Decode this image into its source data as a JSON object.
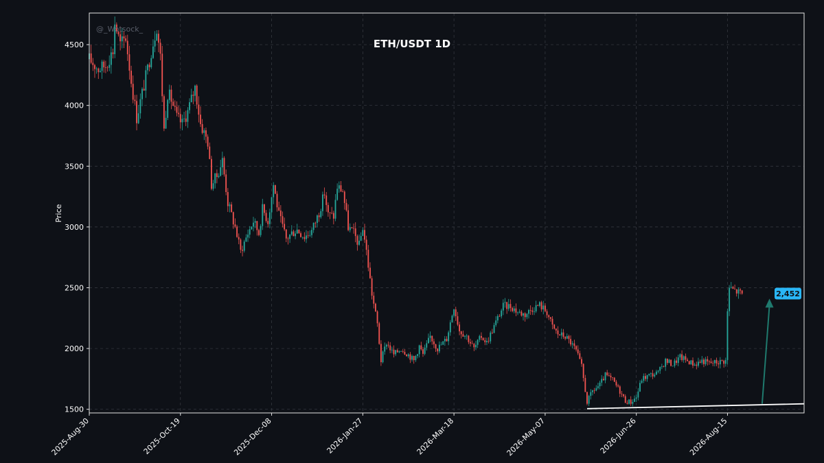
{
  "colors": {
    "background": "#0e1117",
    "axes_frame": "#e6e6e6",
    "grid": "#3a3d45",
    "text": "#ffffff",
    "up": "#26a69a",
    "down": "#ef5350",
    "price_badge": "#29b6f6",
    "arrow": "#1f7a6e",
    "trendline": "#ffffff",
    "watermark": "#5a5f6a"
  },
  "chart_data": {
    "type": "candlestick",
    "title": "ETH/USDT  1D",
    "ylabel": "Price",
    "watermark": "@_Wotsock_",
    "x_range": [
      "2025-08-30",
      "2026-09-26"
    ],
    "ylim": [
      1470,
      4760
    ],
    "y_ticks": [
      1500,
      2000,
      2500,
      3000,
      3500,
      4000,
      4500
    ],
    "x_tick_labels": [
      "2025-Aug-30",
      "2025-Oct-19",
      "2025-Dec-08",
      "2026-Jan-27",
      "2026-Mar-18",
      "2026-May-07",
      "2026-Jun-26",
      "2026-Aug-15"
    ],
    "x_tick_dates": [
      "2025-08-30",
      "2025-10-19",
      "2025-12-08",
      "2026-01-27",
      "2026-03-18",
      "2026-05-07",
      "2026-06-26",
      "2026-08-15"
    ],
    "grid": true,
    "close_path": [
      [
        "2025-08-30",
        4380
      ],
      [
        "2025-09-04",
        4300
      ],
      [
        "2025-09-08",
        4330
      ],
      [
        "2025-09-12",
        4450
      ],
      [
        "2025-09-13",
        4680
      ],
      [
        "2025-09-16",
        4500
      ],
      [
        "2025-09-19",
        4560
      ],
      [
        "2025-09-22",
        4200
      ],
      [
        "2025-09-25",
        3900
      ],
      [
        "2025-09-28",
        4100
      ],
      [
        "2025-10-01",
        4300
      ],
      [
        "2025-10-03",
        4450
      ],
      [
        "2025-10-06",
        4650
      ],
      [
        "2025-10-08",
        4400
      ],
      [
        "2025-10-10",
        3800
      ],
      [
        "2025-10-12",
        4100
      ],
      [
        "2025-10-14",
        4050
      ],
      [
        "2025-10-17",
        3900
      ],
      [
        "2025-10-20",
        3850
      ],
      [
        "2025-10-23",
        3950
      ],
      [
        "2025-10-27",
        4150
      ],
      [
        "2025-10-30",
        3850
      ],
      [
        "2025-11-03",
        3700
      ],
      [
        "2025-11-05",
        3350
      ],
      [
        "2025-11-08",
        3420
      ],
      [
        "2025-11-11",
        3550
      ],
      [
        "2025-11-14",
        3200
      ],
      [
        "2025-11-18",
        3000
      ],
      [
        "2025-11-21",
        2800
      ],
      [
        "2025-11-25",
        2950
      ],
      [
        "2025-11-28",
        3050
      ],
      [
        "2025-12-01",
        2950
      ],
      [
        "2025-12-03",
        3150
      ],
      [
        "2025-12-06",
        3050
      ],
      [
        "2025-12-09",
        3350
      ],
      [
        "2025-12-12",
        3100
      ],
      [
        "2025-12-16",
        2900
      ],
      [
        "2025-12-19",
        2950
      ],
      [
        "2025-12-22",
        2980
      ],
      [
        "2025-12-26",
        2920
      ],
      [
        "2025-12-30",
        2970
      ],
      [
        "2026-01-03",
        3120
      ],
      [
        "2026-01-06",
        3280
      ],
      [
        "2026-01-08",
        3100
      ],
      [
        "2026-01-11",
        3090
      ],
      [
        "2026-01-13",
        3330
      ],
      [
        "2026-01-16",
        3300
      ],
      [
        "2026-01-19",
        3000
      ],
      [
        "2026-01-22",
        2950
      ],
      [
        "2026-01-25",
        2850
      ],
      [
        "2026-01-27",
        3000
      ],
      [
        "2026-01-29",
        2800
      ],
      [
        "2026-02-01",
        2450
      ],
      [
        "2026-02-04",
        2200
      ],
      [
        "2026-02-06",
        1900
      ],
      [
        "2026-02-09",
        2050
      ],
      [
        "2026-02-13",
        1950
      ],
      [
        "2026-02-17",
        2000
      ],
      [
        "2026-02-21",
        1950
      ],
      [
        "2026-02-24",
        1900
      ],
      [
        "2026-02-27",
        2020
      ],
      [
        "2026-03-01",
        1950
      ],
      [
        "2026-03-05",
        2100
      ],
      [
        "2026-03-09",
        2000
      ],
      [
        "2026-03-14",
        2080
      ],
      [
        "2026-03-18",
        2350
      ],
      [
        "2026-03-21",
        2150
      ],
      [
        "2026-03-25",
        2100
      ],
      [
        "2026-03-29",
        2000
      ],
      [
        "2026-04-02",
        2100
      ],
      [
        "2026-04-05",
        2050
      ],
      [
        "2026-04-08",
        2150
      ],
      [
        "2026-04-11",
        2250
      ],
      [
        "2026-04-14",
        2350
      ],
      [
        "2026-04-18",
        2350
      ],
      [
        "2026-04-22",
        2300
      ],
      [
        "2026-04-26",
        2280
      ],
      [
        "2026-04-30",
        2330
      ],
      [
        "2026-05-04",
        2360
      ],
      [
        "2026-05-08",
        2300
      ],
      [
        "2026-05-11",
        2180
      ],
      [
        "2026-05-14",
        2120
      ],
      [
        "2026-05-18",
        2100
      ],
      [
        "2026-05-21",
        2050
      ],
      [
        "2026-05-24",
        1980
      ],
      [
        "2026-05-27",
        1850
      ],
      [
        "2026-05-30",
        1560
      ],
      [
        "2026-06-02",
        1650
      ],
      [
        "2026-06-06",
        1700
      ],
      [
        "2026-06-09",
        1780
      ],
      [
        "2026-06-13",
        1740
      ],
      [
        "2026-06-17",
        1650
      ],
      [
        "2026-06-20",
        1570
      ],
      [
        "2026-06-23",
        1560
      ],
      [
        "2026-06-26",
        1600
      ],
      [
        "2026-06-29",
        1750
      ],
      [
        "2026-07-03",
        1780
      ],
      [
        "2026-07-08",
        1800
      ],
      [
        "2026-07-12",
        1900
      ],
      [
        "2026-07-16",
        1870
      ],
      [
        "2026-07-20",
        1930
      ],
      [
        "2026-07-24",
        1900
      ],
      [
        "2026-07-28",
        1870
      ],
      [
        "2026-08-01",
        1900
      ],
      [
        "2026-08-05",
        1880
      ],
      [
        "2026-08-10",
        1890
      ],
      [
        "2026-08-14",
        1900
      ],
      [
        "2026-08-15",
        2300
      ],
      [
        "2026-08-16",
        2500
      ],
      [
        "2026-08-20",
        2470
      ],
      [
        "2026-08-23",
        2452
      ]
    ],
    "last_price_label": "2,452",
    "trendline": {
      "start": [
        "2026-05-30",
        1505
      ],
      "end": [
        "2026-09-26",
        1545
      ]
    },
    "arrow": {
      "from": [
        "2026-09-03",
        1545
      ],
      "to": [
        "2026-09-07",
        2410
      ]
    }
  }
}
